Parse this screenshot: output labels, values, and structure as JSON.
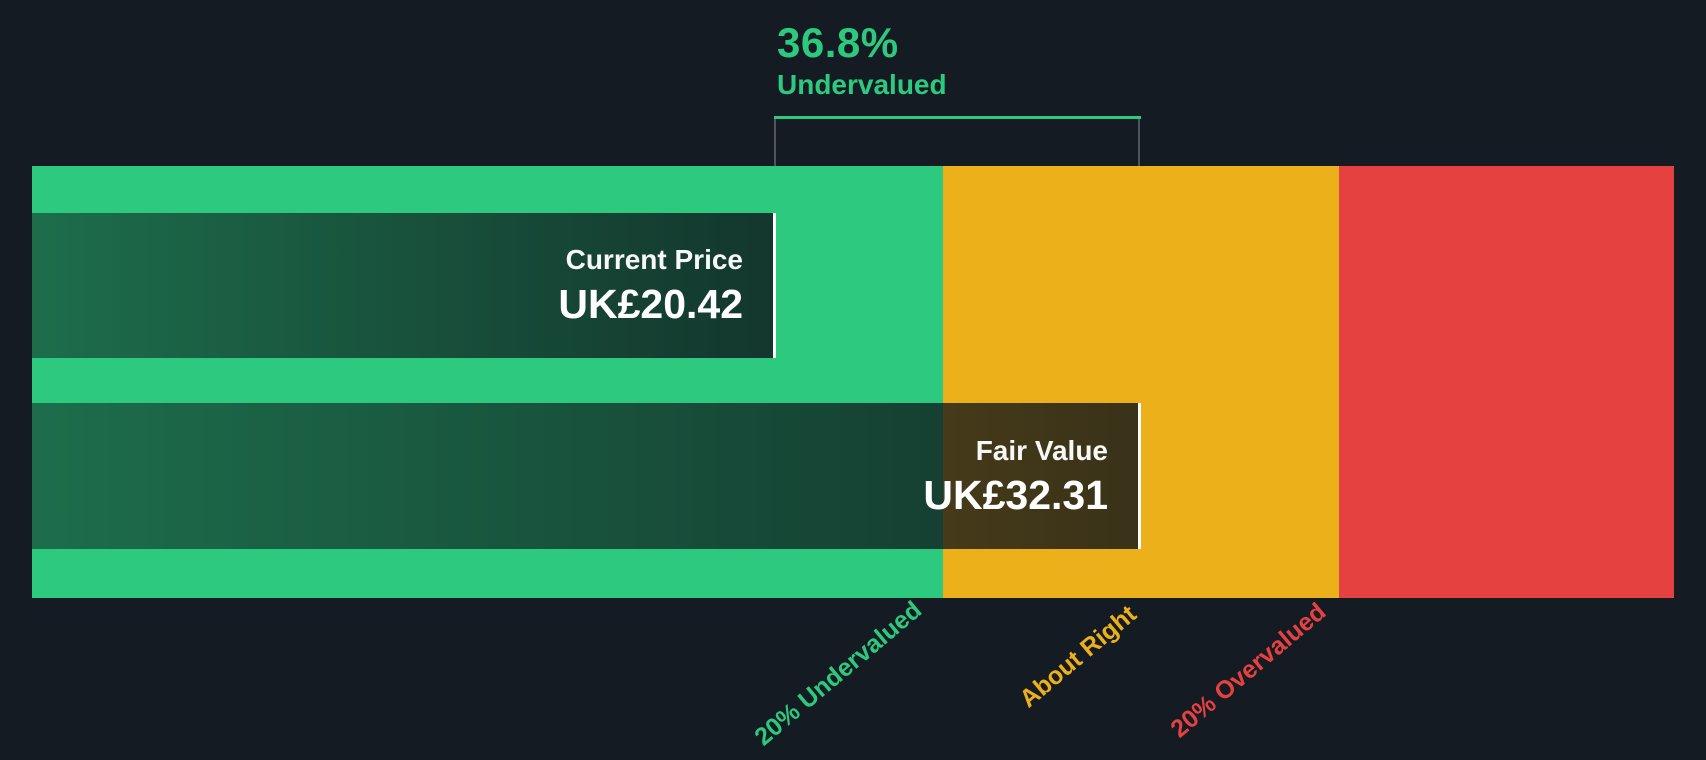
{
  "colors": {
    "background": "#151b23",
    "green": "#2dc97e",
    "amber": "#ecb11a",
    "red": "#e54141",
    "guide_gray": "#4d545c",
    "white_text": "#ffffff"
  },
  "header": {
    "percent": "36.8%",
    "status": "Undervalued"
  },
  "current_price": {
    "label": "Current Price",
    "value": "UK£20.42"
  },
  "fair_value": {
    "label": "Fair Value",
    "value": "UK£32.31"
  },
  "zones": {
    "undervalued": "20% Undervalued",
    "about_right": "About Right",
    "overvalued": "20% Overvalued"
  },
  "chart_data": {
    "type": "bar",
    "orientation": "horizontal",
    "currency_prefix": "UK£",
    "series": [
      {
        "name": "Current Price",
        "value": 20.42,
        "label": "UK£20.42"
      },
      {
        "name": "Fair Value",
        "value": 32.31,
        "label": "UK£32.31"
      }
    ],
    "annotation": {
      "percent": 36.8,
      "status": "Undervalued"
    },
    "zones": [
      {
        "label": "20% Undervalued",
        "color": "#2dc97e",
        "range_approx": [
          null,
          25.85
        ]
      },
      {
        "label": "About Right",
        "color": "#ecb11a",
        "range_approx": [
          25.85,
          38.77
        ]
      },
      {
        "label": "20% Overvalued",
        "color": "#e54141",
        "range_approx": [
          38.77,
          null
        ]
      }
    ],
    "legend_position": "none",
    "grid": false
  }
}
